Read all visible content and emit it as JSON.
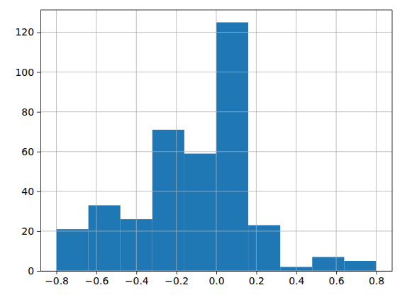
{
  "chart_data": {
    "type": "histogram",
    "bins": [
      -0.8,
      -0.64,
      -0.48,
      -0.32,
      -0.16,
      0.0,
      0.16,
      0.32,
      0.48,
      0.64,
      0.8
    ],
    "values": [
      21,
      33,
      26,
      71,
      59,
      125,
      23,
      2,
      7,
      5
    ],
    "color": "#1f77b4",
    "xlim": [
      -0.88,
      0.88
    ],
    "ylim": [
      0,
      131.25
    ],
    "xticks": [
      {
        "value": -0.8,
        "label": "−0.8"
      },
      {
        "value": -0.6,
        "label": "−0.6"
      },
      {
        "value": -0.4,
        "label": "−0.4"
      },
      {
        "value": -0.2,
        "label": "−0.2"
      },
      {
        "value": 0.0,
        "label": "0.0"
      },
      0.2,
      0.4,
      0.6,
      0.8
    ],
    "yticks": [
      0,
      20,
      40,
      60,
      80,
      100,
      120
    ],
    "grid": true
  }
}
